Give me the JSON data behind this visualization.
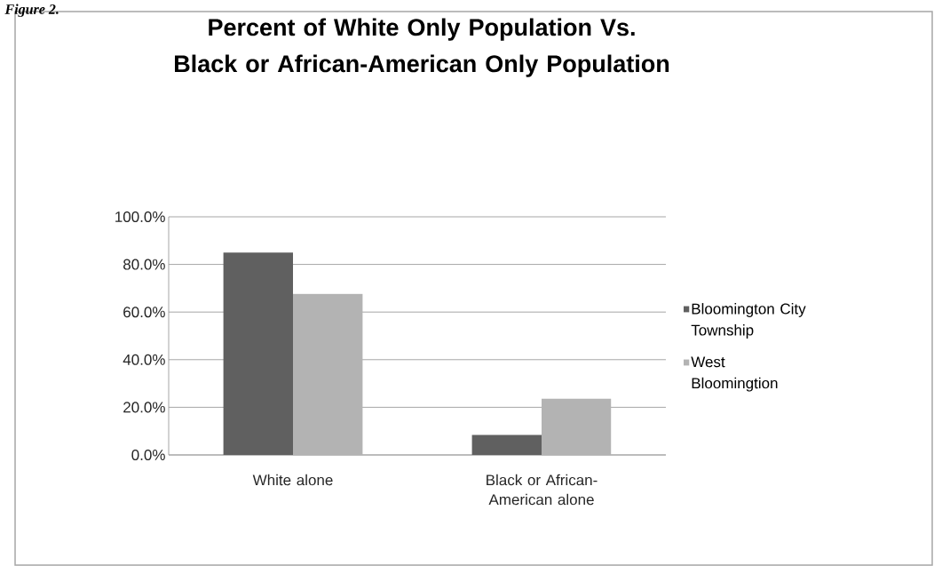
{
  "chart_data": {
    "type": "bar",
    "title": "Percent of White Only Population Vs. Black or African-American Only Population",
    "categories": [
      "White alone",
      "Black or African-American alone"
    ],
    "series": [
      {
        "name": "Bloomington City Township",
        "color": "#606060",
        "values": [
          85.0,
          8.4
        ]
      },
      {
        "name": "West Bloomingtion",
        "color": "#b3b3b3",
        "values": [
          67.6,
          23.6
        ]
      }
    ],
    "ylim": [
      0,
      100
    ],
    "yticks": [
      {
        "value": 0,
        "label": "0.0%"
      },
      {
        "value": 20,
        "label": "20.0%"
      },
      {
        "value": 40,
        "label": "40.0%"
      },
      {
        "value": 60,
        "label": "60.0%"
      },
      {
        "value": 80,
        "label": "80.0%"
      },
      {
        "value": 100,
        "label": "100.0%"
      }
    ],
    "grid": "y",
    "legend": "right",
    "annotations": [
      "Figure 2."
    ]
  }
}
